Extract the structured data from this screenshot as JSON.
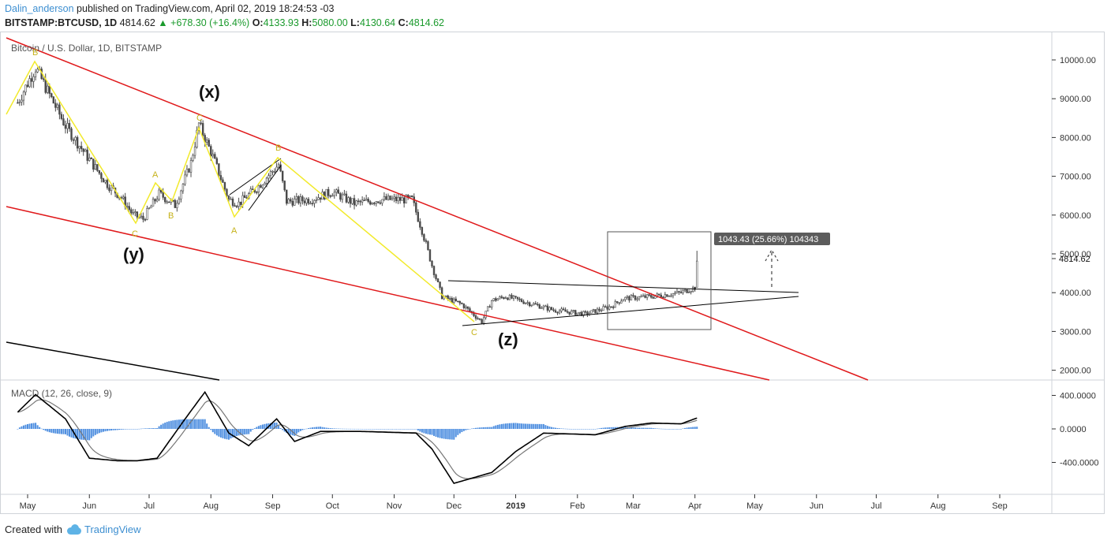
{
  "header": {
    "author": "Dalin_anderson",
    "published_text": "published on TradingView.com, April 02, 2019 18:24:53 -03"
  },
  "symbol_line": {
    "symbol": "BITSTAMP:BTCUSD, 1D",
    "last": "4814.62",
    "change": "▲ +678.30 (+16.4%)",
    "o_label": "O:",
    "o": "4133.93",
    "h_label": "H:",
    "h": "5080.00",
    "l_label": "L:",
    "l": "4130.64",
    "c_label": "C:",
    "c": "4814.62"
  },
  "main_pane": {
    "legend": "Bitcoin / U.S. Dollar, 1D, BITSTAMP",
    "price_ticks": [
      "10000.00",
      "9000.00",
      "8000.00",
      "7000.00",
      "6000.00",
      "5000.00",
      "4000.00",
      "3000.00",
      "2000.00"
    ],
    "price_tick_values": [
      10000,
      9000,
      8000,
      7000,
      6000,
      5000,
      4000,
      3000,
      2000
    ],
    "last_price_label": "4814.62",
    "measure_label": "1043.43 (25.66%) 104343",
    "wave_labels": [
      "(x)",
      "(y)",
      "(z)"
    ],
    "point_labels": [
      "B",
      "C",
      "A",
      "B",
      "C",
      "B",
      "A",
      "C"
    ]
  },
  "macd_pane": {
    "legend": "MACD (12, 26, close, 9)",
    "ticks": [
      "400.0000",
      "0.0000",
      "-400.0000"
    ],
    "tick_values": [
      400,
      0,
      -400
    ]
  },
  "time_axis": {
    "labels": [
      "May",
      "Jun",
      "Jul",
      "Aug",
      "Sep",
      "Oct",
      "Nov",
      "Dec",
      "2019",
      "Feb",
      "Mar",
      "Apr",
      "May",
      "Jun",
      "Jul",
      "Aug",
      "Sep"
    ],
    "bold_label": "2019"
  },
  "footer": {
    "created_with": "Created with",
    "brand": "TradingView"
  },
  "colors": {
    "channel_red": "#e0191b",
    "wave_yellow": "#f2ea2c",
    "candle": "#4a4a4a",
    "macd_hist": "#4f8fe0",
    "label_gold": "#c6b21a",
    "macd_line": "#000000",
    "signal_line": "#777777"
  },
  "chart_data": {
    "type": "candlestick",
    "title": "Bitcoin / U.S. Dollar, 1D, BITSTAMP",
    "xlabel": "",
    "ylabel": "",
    "ylim": [
      1700,
      10700
    ],
    "close_path": [
      [
        "2018-04-26",
        8900
      ],
      [
        "2018-05-05",
        9800
      ],
      [
        "2018-05-10",
        9300
      ],
      [
        "2018-05-20",
        8300
      ],
      [
        "2018-05-31",
        7500
      ],
      [
        "2018-06-10",
        6800
      ],
      [
        "2018-06-17",
        6450
      ],
      [
        "2018-06-23",
        6000
      ],
      [
        "2018-06-28",
        5900
      ],
      [
        "2018-07-06",
        6550
      ],
      [
        "2018-07-14",
        6250
      ],
      [
        "2018-07-22",
        7350
      ],
      [
        "2018-07-26",
        8350
      ],
      [
        "2018-08-02",
        7500
      ],
      [
        "2018-08-10",
        6400
      ],
      [
        "2018-08-15",
        6300
      ],
      [
        "2018-08-24",
        6700
      ],
      [
        "2018-09-04",
        7300
      ],
      [
        "2018-09-08",
        6350
      ],
      [
        "2018-09-20",
        6400
      ],
      [
        "2018-10-01",
        6600
      ],
      [
        "2018-10-12",
        6300
      ],
      [
        "2018-10-25",
        6400
      ],
      [
        "2018-11-10",
        6400
      ],
      [
        "2018-11-15",
        5600
      ],
      [
        "2018-11-20",
        4700
      ],
      [
        "2018-11-25",
        3900
      ],
      [
        "2018-12-05",
        3700
      ],
      [
        "2018-12-15",
        3250
      ],
      [
        "2018-12-20",
        3800
      ],
      [
        "2018-12-27",
        3900
      ],
      [
        "2019-01-10",
        3700
      ],
      [
        "2019-01-20",
        3550
      ],
      [
        "2019-02-05",
        3450
      ],
      [
        "2019-02-18",
        3650
      ],
      [
        "2019-02-24",
        3850
      ],
      [
        "2019-03-10",
        3900
      ],
      [
        "2019-03-25",
        4000
      ],
      [
        "2019-04-01",
        4136
      ],
      [
        "2019-04-02",
        4814.62
      ]
    ],
    "macd_path": [
      [
        "2018-04-26",
        200
      ],
      [
        "2018-05-05",
        410
      ],
      [
        "2018-05-20",
        120
      ],
      [
        "2018-06-01",
        -350
      ],
      [
        "2018-06-15",
        -380
      ],
      [
        "2018-06-25",
        -380
      ],
      [
        "2018-07-05",
        -350
      ],
      [
        "2018-07-20",
        150
      ],
      [
        "2018-07-29",
        440
      ],
      [
        "2018-08-10",
        -50
      ],
      [
        "2018-08-20",
        -200
      ],
      [
        "2018-09-03",
        120
      ],
      [
        "2018-09-12",
        -150
      ],
      [
        "2018-09-25",
        -30
      ],
      [
        "2018-10-15",
        -30
      ],
      [
        "2018-11-12",
        -50
      ],
      [
        "2018-11-20",
        -240
      ],
      [
        "2018-12-01",
        -650
      ],
      [
        "2018-12-20",
        -520
      ],
      [
        "2019-01-01",
        -270
      ],
      [
        "2019-01-15",
        -50
      ],
      [
        "2019-02-10",
        -70
      ],
      [
        "2019-02-25",
        30
      ],
      [
        "2019-03-10",
        70
      ],
      [
        "2019-03-25",
        60
      ],
      [
        "2019-04-02",
        130
      ]
    ]
  }
}
